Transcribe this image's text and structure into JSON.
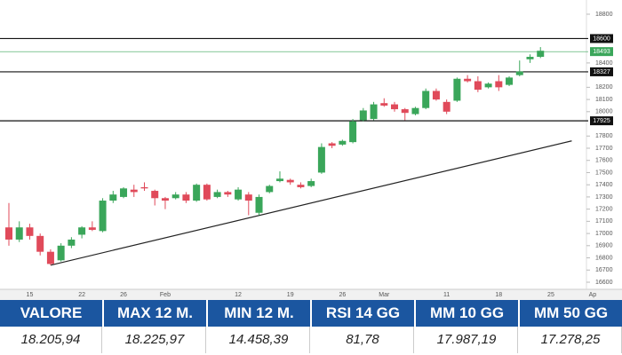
{
  "chart_data": {
    "type": "candlestick",
    "categories": [
      null,
      null,
      "15",
      null,
      null,
      null,
      null,
      "22",
      null,
      null,
      null,
      "26",
      null,
      null,
      null,
      "Feb",
      null,
      null,
      null,
      null,
      null,
      null,
      "12",
      null,
      null,
      null,
      null,
      "19",
      null,
      null,
      null,
      null,
      "26",
      null,
      null,
      null,
      "Mar",
      null,
      null,
      null,
      null,
      null,
      "11",
      null,
      null,
      null,
      null,
      "18",
      null,
      null,
      null,
      null,
      "25",
      null,
      null,
      null,
      "Ap"
    ],
    "open": [
      17050,
      16950,
      17050,
      16980,
      16850,
      16780,
      16900,
      16990,
      17050,
      17020,
      17270,
      17300,
      17360,
      17380,
      17350,
      17290,
      17290,
      17320,
      17270,
      17400,
      17300,
      17340,
      17280,
      17320,
      17170,
      17340,
      17430,
      17440,
      17400,
      17390,
      17500,
      17740,
      17730,
      17750,
      17930,
      17940,
      18070,
      18060,
      18020,
      17980,
      18030,
      18170,
      18080,
      18090,
      18270,
      18250,
      18200,
      18250,
      18220,
      18300,
      18430,
      18450,
      null,
      null,
      null,
      null,
      null
    ],
    "high": [
      17250,
      17100,
      17080,
      17000,
      16870,
      16920,
      16970,
      17060,
      17100,
      17290,
      17350,
      17380,
      17400,
      17420,
      17360,
      17300,
      17340,
      17340,
      17410,
      17410,
      17360,
      17350,
      17380,
      17340,
      17320,
      17400,
      17510,
      17450,
      17420,
      17450,
      17740,
      17750,
      17770,
      17940,
      18030,
      18080,
      18110,
      18080,
      18030,
      18040,
      18190,
      18190,
      18100,
      18280,
      18300,
      18290,
      18240,
      18300,
      18290,
      18420,
      18470,
      18530,
      null,
      null,
      null,
      null,
      null
    ],
    "low": [
      16900,
      16930,
      16950,
      16820,
      16740,
      16770,
      16880,
      16960,
      17020,
      17010,
      17250,
      17290,
      17300,
      17350,
      17230,
      17200,
      17280,
      17250,
      17260,
      17270,
      17290,
      17300,
      17270,
      17150,
      17150,
      17330,
      17420,
      17400,
      17370,
      17380,
      17490,
      17700,
      17720,
      17740,
      17920,
      17930,
      18040,
      18000,
      17930,
      17970,
      18020,
      18090,
      17980,
      18080,
      18240,
      18160,
      18190,
      18170,
      18210,
      18290,
      18400,
      18440,
      null,
      null,
      null,
      null,
      null
    ],
    "close": [
      16950,
      17050,
      16980,
      16850,
      16750,
      16900,
      16950,
      17050,
      17030,
      17270,
      17320,
      17370,
      17340,
      17370,
      17290,
      17270,
      17320,
      17270,
      17400,
      17280,
      17340,
      17320,
      17360,
      17270,
      17300,
      17390,
      17450,
      17420,
      17380,
      17430,
      17710,
      17720,
      17760,
      17920,
      18010,
      18060,
      18050,
      18020,
      17990,
      18030,
      18170,
      18100,
      18000,
      18270,
      18250,
      18180,
      18230,
      18200,
      18280,
      18330,
      18450,
      18500,
      null,
      null,
      null,
      null,
      null
    ],
    "up_color": "#3aa65a",
    "down_color": "#e04a5a",
    "ylim": [
      16550,
      18850
    ],
    "yticks": [
      16600,
      16700,
      16800,
      16900,
      17000,
      17100,
      17200,
      17300,
      17400,
      17500,
      17600,
      17700,
      17800,
      18000,
      18100,
      18200,
      18400,
      18800
    ],
    "levels": [
      18600,
      18327,
      17925
    ],
    "level_color": "#111111",
    "last_price": 18493,
    "last_color": "#3aa65a",
    "trendline": {
      "x": [
        4,
        54
      ],
      "y": [
        16740,
        17760
      ]
    }
  },
  "table": {
    "headers": [
      "VALORE",
      "MAX 12 M.",
      "MIN 12 M.",
      "RSI 14 GG",
      "MM 10 GG",
      "MM 50 GG"
    ],
    "values": [
      "18.205,94",
      "18.225,97",
      "14.458,39",
      "81,78",
      "17.987,19",
      "17.278,25"
    ]
  }
}
